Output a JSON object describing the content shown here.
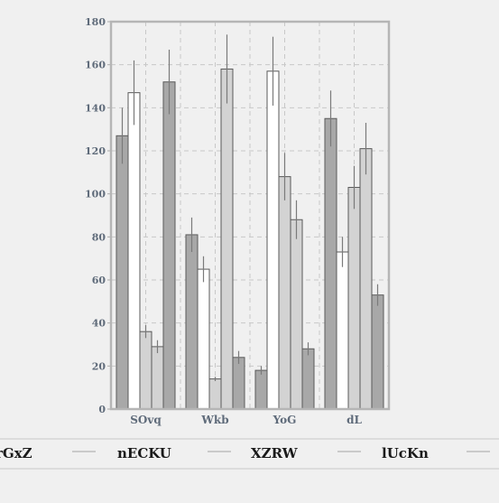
{
  "chart_data": {
    "type": "bar",
    "categories": [
      "SOvq",
      "Wkb",
      "YoG",
      "dL"
    ],
    "series": [
      {
        "name": "rGxZ",
        "color": "#a8a8a8",
        "values": [
          127,
          81,
          18,
          135
        ],
        "errors": [
          13,
          8,
          2,
          13
        ]
      },
      {
        "name": "nECKU",
        "color": "#ffffff",
        "values": [
          147,
          65,
          157,
          73
        ],
        "errors": [
          15,
          6,
          16,
          7
        ]
      },
      {
        "name": "XZRW",
        "color": "#d3d3d3",
        "values": [
          36,
          14,
          108,
          103
        ],
        "errors": [
          3,
          1,
          11,
          10
        ]
      },
      {
        "name": "lUcKn",
        "color": "#d3d3d3",
        "values": [
          29,
          158,
          88,
          121
        ],
        "errors": [
          3,
          16,
          9,
          12
        ]
      },
      {
        "name": "",
        "color": "#a8a8a8",
        "values": [
          152,
          24,
          28,
          53
        ],
        "errors": [
          15,
          3,
          3,
          5
        ]
      }
    ],
    "yticks": [
      0,
      20,
      40,
      60,
      80,
      100,
      120,
      140,
      160,
      180
    ],
    "ylim": [
      0,
      180
    ],
    "grid": true,
    "legend_position": "bottom",
    "title": "",
    "xlabel": "",
    "ylabel": ""
  }
}
